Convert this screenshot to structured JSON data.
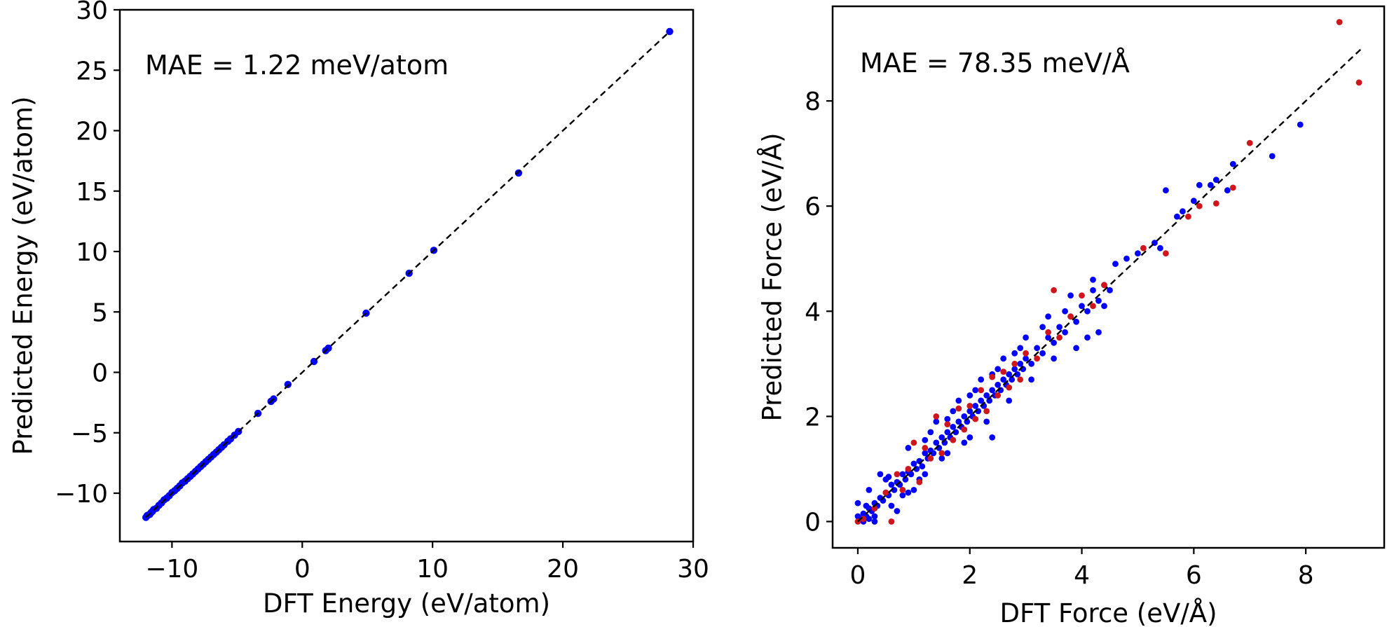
{
  "chart_data": [
    {
      "type": "scatter",
      "annotation": "MAE = 1.22 meV/atom",
      "xlabel": "DFT Energy (eV/atom)",
      "ylabel": "Predicted Energy (eV/atom)",
      "xlim": [
        -14,
        30
      ],
      "ylim": [
        -14,
        30
      ],
      "xticks": [
        -10,
        0,
        10,
        20,
        30
      ],
      "xtick_labels": [
        "−10",
        "0",
        "10",
        "20",
        "30"
      ],
      "yticks": [
        -10,
        -5,
        0,
        5,
        10,
        15,
        20,
        25,
        30
      ],
      "ytick_labels": [
        "−10",
        "−5",
        "0",
        "5",
        "10",
        "15",
        "20",
        "25",
        "30"
      ],
      "grid": false,
      "reference_line": {
        "style": "dashed",
        "color": "#000000",
        "from": [
          -12,
          -12
        ],
        "to": [
          28.2,
          28.2
        ]
      },
      "series": [
        {
          "color": "#0000ff",
          "points": [
            [
              -12.0,
              -12.0
            ],
            [
              -11.9,
              -11.85
            ],
            [
              -11.8,
              -11.8
            ],
            [
              -11.7,
              -11.75
            ],
            [
              -11.6,
              -11.6
            ],
            [
              -11.5,
              -11.5
            ],
            [
              -11.4,
              -11.35
            ],
            [
              -11.2,
              -11.25
            ],
            [
              -11.0,
              -11.0
            ],
            [
              -10.8,
              -10.8
            ],
            [
              -10.6,
              -10.55
            ],
            [
              -10.4,
              -10.4
            ],
            [
              -10.2,
              -10.2
            ],
            [
              -10.0,
              -9.95
            ],
            [
              -9.8,
              -9.8
            ],
            [
              -9.6,
              -9.6
            ],
            [
              -9.4,
              -9.4
            ],
            [
              -9.2,
              -9.15
            ],
            [
              -9.0,
              -9.0
            ],
            [
              -8.8,
              -8.8
            ],
            [
              -8.6,
              -8.6
            ],
            [
              -8.4,
              -8.4
            ],
            [
              -8.2,
              -8.2
            ],
            [
              -8.0,
              -8.0
            ],
            [
              -7.8,
              -7.8
            ],
            [
              -7.6,
              -7.6
            ],
            [
              -7.4,
              -7.4
            ],
            [
              -7.2,
              -7.2
            ],
            [
              -7.0,
              -7.0
            ],
            [
              -6.8,
              -6.8
            ],
            [
              -6.6,
              -6.6
            ],
            [
              -6.4,
              -6.4
            ],
            [
              -6.2,
              -6.2
            ],
            [
              -6.0,
              -6.0
            ],
            [
              -5.7,
              -5.7
            ],
            [
              -5.5,
              -5.5
            ],
            [
              -5.2,
              -5.2
            ],
            [
              -4.9,
              -4.9
            ],
            [
              -3.4,
              -3.4
            ],
            [
              -2.4,
              -2.4
            ],
            [
              -2.2,
              -2.2
            ],
            [
              -1.1,
              -1.0
            ],
            [
              0.9,
              0.9
            ],
            [
              1.8,
              1.8
            ],
            [
              2.0,
              2.0
            ],
            [
              4.9,
              4.9
            ],
            [
              8.2,
              8.2
            ],
            [
              10.1,
              10.1
            ],
            [
              16.6,
              16.5
            ],
            [
              28.2,
              28.2
            ]
          ]
        }
      ]
    },
    {
      "type": "scatter",
      "annotation": "MAE = 78.35 meV/Å",
      "xlabel": "DFT Force (eV/Å)",
      "ylabel": "Predicted Force (eV/Å)",
      "xlim": [
        -0.45,
        9.4
      ],
      "ylim": [
        -0.5,
        9.8
      ],
      "xticks": [
        0,
        2,
        4,
        6,
        8
      ],
      "xtick_labels": [
        "0",
        "2",
        "4",
        "6",
        "8"
      ],
      "yticks": [
        0,
        2,
        4,
        6,
        8
      ],
      "ytick_labels": [
        "0",
        "2",
        "4",
        "6",
        "8"
      ],
      "grid": false,
      "reference_line": {
        "style": "dashed",
        "color": "#000000",
        "from": [
          0,
          0
        ],
        "to": [
          9.0,
          9.0
        ]
      },
      "series": [
        {
          "color": "#0000ff",
          "points": [
            [
              0.0,
              0.35
            ],
            [
              0.05,
              0.05
            ],
            [
              0.1,
              0.15
            ],
            [
              0.15,
              0.1
            ],
            [
              0.2,
              0.25
            ],
            [
              0.25,
              0.2
            ],
            [
              0.3,
              0.35
            ],
            [
              0.35,
              0.3
            ],
            [
              0.4,
              0.45
            ],
            [
              0.45,
              0.4
            ],
            [
              0.5,
              0.55
            ],
            [
              0.55,
              0.5
            ],
            [
              0.6,
              0.7
            ],
            [
              0.65,
              0.6
            ],
            [
              0.7,
              0.75
            ],
            [
              0.75,
              0.7
            ],
            [
              0.8,
              0.9
            ],
            [
              0.85,
              0.8
            ],
            [
              0.9,
              0.95
            ],
            [
              0.95,
              0.9
            ],
            [
              1.0,
              1.1
            ],
            [
              1.05,
              1.0
            ],
            [
              1.1,
              1.15
            ],
            [
              1.15,
              1.05
            ],
            [
              1.2,
              1.3
            ],
            [
              1.25,
              1.2
            ],
            [
              1.3,
              1.35
            ],
            [
              1.35,
              1.3
            ],
            [
              1.4,
              1.5
            ],
            [
              1.45,
              1.4
            ],
            [
              1.5,
              1.6
            ],
            [
              1.55,
              1.5
            ],
            [
              1.6,
              1.7
            ],
            [
              1.65,
              1.6
            ],
            [
              1.7,
              1.8
            ],
            [
              1.75,
              1.7
            ],
            [
              1.8,
              1.9
            ],
            [
              1.85,
              1.8
            ],
            [
              1.9,
              2.0
            ],
            [
              1.95,
              1.9
            ],
            [
              2.0,
              2.1
            ],
            [
              2.05,
              2.0
            ],
            [
              2.1,
              2.2
            ],
            [
              2.15,
              2.1
            ],
            [
              2.2,
              2.3
            ],
            [
              2.25,
              2.2
            ],
            [
              2.3,
              2.4
            ],
            [
              2.35,
              2.3
            ],
            [
              2.4,
              2.5
            ],
            [
              2.45,
              2.4
            ],
            [
              2.5,
              2.6
            ],
            [
              2.55,
              2.5
            ],
            [
              2.6,
              2.7
            ],
            [
              2.65,
              2.6
            ],
            [
              2.7,
              2.8
            ],
            [
              2.75,
              2.7
            ],
            [
              2.8,
              2.9
            ],
            [
              2.85,
              2.8
            ],
            [
              2.9,
              3.0
            ],
            [
              2.95,
              2.9
            ],
            [
              3.0,
              3.1
            ],
            [
              3.1,
              3.0
            ],
            [
              3.2,
              3.3
            ],
            [
              3.3,
              3.2
            ],
            [
              3.4,
              3.5
            ],
            [
              3.5,
              3.4
            ],
            [
              3.6,
              3.7
            ],
            [
              3.7,
              3.6
            ],
            [
              3.8,
              3.9
            ],
            [
              3.9,
              3.8
            ],
            [
              4.0,
              4.1
            ],
            [
              4.1,
              4.0
            ],
            [
              4.2,
              4.4
            ],
            [
              4.3,
              4.2
            ],
            [
              4.4,
              4.5
            ],
            [
              4.5,
              4.4
            ],
            [
              0.2,
              0.6
            ],
            [
              0.4,
              0.9
            ],
            [
              0.6,
              0.3
            ],
            [
              0.9,
              1.4
            ],
            [
              1.1,
              0.8
            ],
            [
              1.3,
              1.7
            ],
            [
              1.5,
              1.2
            ],
            [
              1.7,
              2.1
            ],
            [
              1.9,
              1.5
            ],
            [
              2.1,
              2.5
            ],
            [
              2.3,
              1.9
            ],
            [
              2.5,
              2.9
            ],
            [
              2.7,
              2.3
            ],
            [
              2.9,
              3.3
            ],
            [
              3.1,
              2.7
            ],
            [
              3.3,
              3.7
            ],
            [
              3.5,
              3.1
            ],
            [
              3.7,
              4.0
            ],
            [
              2.0,
              1.6
            ],
            [
              1.6,
              1.3
            ],
            [
              1.2,
              0.9
            ],
            [
              0.8,
              0.5
            ],
            [
              0.5,
              0.8
            ],
            [
              0.3,
              0.0
            ],
            [
              1.8,
              2.3
            ],
            [
              2.2,
              2.7
            ],
            [
              2.6,
              3.1
            ],
            [
              3.0,
              3.5
            ],
            [
              3.4,
              3.9
            ],
            [
              3.8,
              4.3
            ],
            [
              4.2,
              4.6
            ],
            [
              4.6,
              4.9
            ],
            [
              4.8,
              5.0
            ],
            [
              4.3,
              3.6
            ],
            [
              4.1,
              3.5
            ],
            [
              3.9,
              3.3
            ],
            [
              4.4,
              4.1
            ],
            [
              5.0,
              5.1
            ],
            [
              5.3,
              5.3
            ],
            [
              5.4,
              5.2
            ],
            [
              5.5,
              6.3
            ],
            [
              5.7,
              5.8
            ],
            [
              5.8,
              5.9
            ],
            [
              6.0,
              6.1
            ],
            [
              6.1,
              6.4
            ],
            [
              6.3,
              6.4
            ],
            [
              6.4,
              6.5
            ],
            [
              6.6,
              6.3
            ],
            [
              6.7,
              6.8
            ],
            [
              7.4,
              6.95
            ],
            [
              7.9,
              7.55
            ],
            [
              0.1,
              0.0
            ],
            [
              0.2,
              0.05
            ],
            [
              0.0,
              0.1
            ],
            [
              0.3,
              0.1
            ],
            [
              0.15,
              0.3
            ],
            [
              0.7,
              0.2
            ],
            [
              1.0,
              0.6
            ],
            [
              1.4,
              1.9
            ],
            [
              2.4,
              1.6
            ],
            [
              0.55,
              0.85
            ],
            [
              0.9,
              0.55
            ],
            [
              1.2,
              1.55
            ],
            [
              1.6,
              1.95
            ],
            [
              2.0,
              2.4
            ],
            [
              2.4,
              2.8
            ],
            [
              2.8,
              3.2
            ]
          ]
        },
        {
          "color": "#d1151c",
          "points": [
            [
              0.0,
              0.0
            ],
            [
              0.1,
              0.05
            ],
            [
              0.3,
              0.25
            ],
            [
              0.5,
              0.55
            ],
            [
              0.6,
              0.0
            ],
            [
              0.7,
              0.9
            ],
            [
              0.8,
              0.6
            ],
            [
              0.9,
              1.0
            ],
            [
              1.0,
              1.5
            ],
            [
              1.1,
              0.75
            ],
            [
              1.2,
              1.4
            ],
            [
              1.3,
              1.2
            ],
            [
              1.4,
              2.0
            ],
            [
              1.5,
              1.3
            ],
            [
              1.6,
              1.85
            ],
            [
              1.7,
              1.55
            ],
            [
              1.8,
              2.15
            ],
            [
              1.9,
              1.75
            ],
            [
              2.0,
              2.2
            ],
            [
              2.1,
              1.95
            ],
            [
              2.2,
              2.5
            ],
            [
              2.3,
              2.1
            ],
            [
              2.4,
              2.75
            ],
            [
              2.5,
              2.4
            ],
            [
              2.6,
              2.85
            ],
            [
              2.7,
              2.55
            ],
            [
              2.8,
              3.0
            ],
            [
              2.9,
              2.7
            ],
            [
              3.0,
              3.2
            ],
            [
              3.2,
              3.1
            ],
            [
              3.4,
              3.6
            ],
            [
              3.5,
              4.4
            ],
            [
              3.6,
              3.5
            ],
            [
              3.8,
              3.9
            ],
            [
              4.0,
              4.3
            ],
            [
              4.2,
              4.1
            ],
            [
              4.4,
              4.5
            ],
            [
              5.1,
              5.2
            ],
            [
              5.5,
              5.1
            ],
            [
              5.9,
              5.8
            ],
            [
              6.1,
              6.0
            ],
            [
              6.4,
              6.05
            ],
            [
              6.7,
              6.35
            ],
            [
              7.0,
              7.2
            ],
            [
              8.6,
              9.5
            ],
            [
              8.95,
              8.35
            ]
          ]
        }
      ]
    }
  ]
}
